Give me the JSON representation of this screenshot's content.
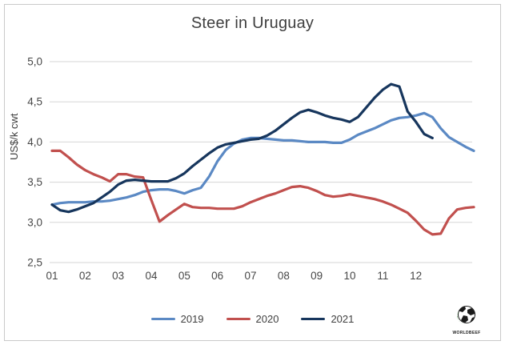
{
  "chart_data": {
    "type": "line",
    "title": "Steer in Uruguay",
    "ylabel": "US$/k cwt",
    "xlabel": "",
    "ylim": [
      2.5,
      5.0
    ],
    "ytick_step": 0.5,
    "ytick_labels": [
      "2,5",
      "3,0",
      "3,5",
      "4,0",
      "4,5",
      "5,0"
    ],
    "x_axis": {
      "unit": "week-of-year",
      "labels": [
        "01",
        "02",
        "03",
        "04",
        "05",
        "06",
        "07",
        "08",
        "09",
        "10",
        "11",
        "12"
      ],
      "points_per_label": 4
    },
    "grid": "horizontal",
    "legend_position": "bottom-center",
    "series": [
      {
        "name": "2019",
        "color": "#5b89c4",
        "values": [
          3.22,
          3.24,
          3.25,
          3.25,
          3.25,
          3.26,
          3.26,
          3.27,
          3.29,
          3.31,
          3.34,
          3.38,
          3.4,
          3.41,
          3.41,
          3.39,
          3.36,
          3.4,
          3.43,
          3.57,
          3.76,
          3.9,
          3.98,
          4.03,
          4.05,
          4.05,
          4.04,
          4.03,
          4.02,
          4.02,
          4.01,
          4.0,
          4.0,
          4.0,
          3.99,
          3.99,
          4.03,
          4.09,
          4.13,
          4.17,
          4.22,
          4.27,
          4.3,
          4.31,
          4.33,
          4.36,
          4.31,
          4.17,
          4.06,
          4.0,
          3.94,
          3.89
        ]
      },
      {
        "name": "2020",
        "color": "#c1504e",
        "values": [
          3.89,
          3.89,
          3.81,
          3.72,
          3.65,
          3.6,
          3.56,
          3.51,
          3.6,
          3.6,
          3.57,
          3.56,
          3.28,
          3.01,
          3.09,
          3.16,
          3.23,
          3.19,
          3.18,
          3.18,
          3.17,
          3.17,
          3.17,
          3.2,
          3.25,
          3.29,
          3.33,
          3.36,
          3.4,
          3.44,
          3.45,
          3.43,
          3.39,
          3.34,
          3.32,
          3.33,
          3.35,
          3.33,
          3.31,
          3.29,
          3.26,
          3.22,
          3.17,
          3.12,
          3.02,
          2.91,
          2.85,
          2.86,
          3.05,
          3.16,
          3.18,
          3.19
        ]
      },
      {
        "name": "2021",
        "color": "#17365d",
        "values": [
          3.22,
          3.15,
          3.13,
          3.16,
          3.2,
          3.24,
          3.31,
          3.38,
          3.47,
          3.52,
          3.53,
          3.52,
          3.51,
          3.51,
          3.51,
          3.55,
          3.61,
          3.7,
          3.78,
          3.86,
          3.93,
          3.97,
          3.99,
          4.01,
          4.03,
          4.04,
          4.08,
          4.14,
          4.22,
          4.3,
          4.37,
          4.4,
          4.37,
          4.33,
          4.3,
          4.28,
          4.25,
          4.31,
          4.43,
          4.55,
          4.65,
          4.72,
          4.69,
          4.38,
          4.25,
          4.1,
          4.05
        ]
      }
    ]
  },
  "branding": {
    "logo_text": "WORLDBEEF"
  }
}
